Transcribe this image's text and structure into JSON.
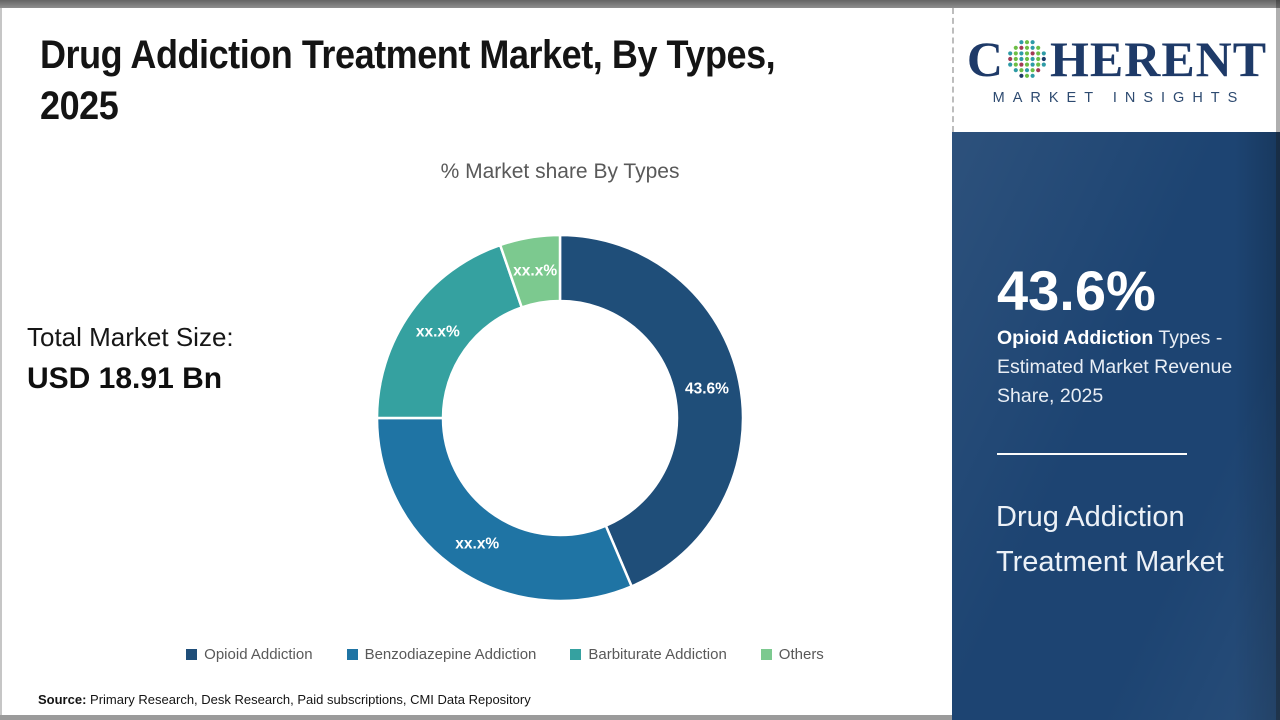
{
  "page": {
    "title_line1": "Drug Addiction Treatment Market, By Types,",
    "title_line2": "2025",
    "source_label": "Source:",
    "source_text": " Primary Research, Desk Research, Paid subscriptions, CMI Data Repository"
  },
  "total_market": {
    "label": "Total Market Size:",
    "value": "USD 18.91 Bn"
  },
  "brand": {
    "word_start": "C",
    "word_end": "HERENT",
    "tagline": "MARKET INSIGHTS",
    "logo_color": "#1e3a68"
  },
  "sidebar": {
    "stat_value": "43.6%",
    "stat_bold": "Opioid Addiction",
    "stat_rest": " Types - Estimated Market Revenue Share, 2025",
    "market_name": "Drug Addiction Treatment Market",
    "panel_color": "#1D4472"
  },
  "chart_data": {
    "type": "pie",
    "donut": true,
    "title": "% Market share By Types",
    "categories": [
      "Opioid Addiction",
      "Benzodiazepine Addiction",
      "Barbiturate Addiction",
      "Others"
    ],
    "values": [
      43.6,
      31.4,
      19.7,
      5.3
    ],
    "labels": [
      "43.6%",
      "xx.x%",
      "xx.x%",
      "xx.x%"
    ],
    "colors": [
      "#1F4E79",
      "#1F74A4",
      "#35A1A0",
      "#7CC98F"
    ],
    "legend_position": "bottom"
  }
}
